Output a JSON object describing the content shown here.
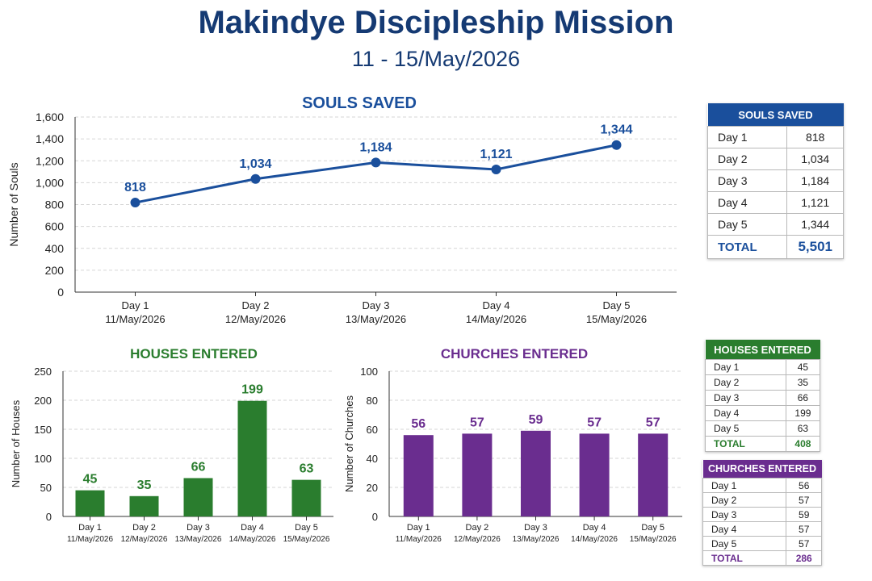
{
  "header": {
    "title": "Makindye Discipleship Mission",
    "subtitle": "11 - 15/May/2026"
  },
  "colors": {
    "title": "#153a73",
    "souls": "#1a4f9c",
    "houses": "#2a7d2e",
    "churches": "#6a2d8f"
  },
  "chart_data": [
    {
      "id": "souls",
      "type": "line",
      "title": "SOULS SAVED",
      "xlabel": "",
      "ylabel": "Number of Souls",
      "categories": [
        "Day 1",
        "Day 2",
        "Day 3",
        "Day 4",
        "Day 5"
      ],
      "dates": [
        "11/May/2026",
        "12/May/2026",
        "13/May/2026",
        "14/May/2026",
        "15/May/2026"
      ],
      "values": [
        818,
        1034,
        1184,
        1121,
        1344
      ],
      "value_labels": [
        "818",
        "1,034",
        "1,184",
        "1,121",
        "1,344"
      ],
      "ylim": [
        0,
        1600
      ],
      "yticks": [
        "0",
        "200",
        "400",
        "600",
        "800",
        "1,000",
        "1,200",
        "1,400",
        "1,600"
      ],
      "grid": true
    },
    {
      "id": "houses",
      "type": "bar",
      "title": "HOUSES ENTERED",
      "xlabel": "",
      "ylabel": "Number of Houses",
      "categories": [
        "Day 1",
        "Day 2",
        "Day 3",
        "Day 4",
        "Day 5"
      ],
      "dates": [
        "11/May/2026",
        "12/May/2026",
        "13/May/2026",
        "14/May/2026",
        "15/May/2026"
      ],
      "values": [
        45,
        35,
        66,
        199,
        63
      ],
      "value_labels": [
        "45",
        "35",
        "66",
        "199",
        "63"
      ],
      "ylim": [
        0,
        250
      ],
      "yticks": [
        "0",
        "50",
        "100",
        "150",
        "200",
        "250"
      ],
      "grid": true
    },
    {
      "id": "churches",
      "type": "bar",
      "title": "CHURCHES ENTERED",
      "xlabel": "",
      "ylabel": "Number of Churches",
      "categories": [
        "Day 1",
        "Day 2",
        "Day 3",
        "Day 4",
        "Day 5"
      ],
      "dates": [
        "11/May/2026",
        "12/May/2026",
        "13/May/2026",
        "14/May/2026",
        "15/May/2026"
      ],
      "values": [
        56,
        57,
        59,
        57,
        57
      ],
      "value_labels": [
        "56",
        "57",
        "59",
        "57",
        "57"
      ],
      "ylim": [
        0,
        100
      ],
      "yticks": [
        "0",
        "20",
        "40",
        "60",
        "80",
        "100"
      ],
      "grid": true
    }
  ],
  "tables": {
    "souls": {
      "header": "SOULS SAVED",
      "rows": [
        {
          "day": "Day 1",
          "value": "818"
        },
        {
          "day": "Day 2",
          "value": "1,034"
        },
        {
          "day": "Day 3",
          "value": "1,184"
        },
        {
          "day": "Day 4",
          "value": "1,121"
        },
        {
          "day": "Day 5",
          "value": "1,344"
        }
      ],
      "total_label": "TOTAL",
      "total_value": "5,501"
    },
    "houses": {
      "header": "HOUSES ENTERED",
      "rows": [
        {
          "day": "Day 1",
          "value": "45"
        },
        {
          "day": "Day 2",
          "value": "35"
        },
        {
          "day": "Day 3",
          "value": "66"
        },
        {
          "day": "Day 4",
          "value": "199"
        },
        {
          "day": "Day 5",
          "value": "63"
        }
      ],
      "total_label": "TOTAL",
      "total_value": "408"
    },
    "churches": {
      "header": "CHURCHES ENTERED",
      "rows": [
        {
          "day": "Day 1",
          "value": "56"
        },
        {
          "day": "Day 2",
          "value": "57"
        },
        {
          "day": "Day 3",
          "value": "59"
        },
        {
          "day": "Day 4",
          "value": "57"
        },
        {
          "day": "Day 5",
          "value": "57"
        }
      ],
      "total_label": "TOTAL",
      "total_value": "286"
    }
  }
}
